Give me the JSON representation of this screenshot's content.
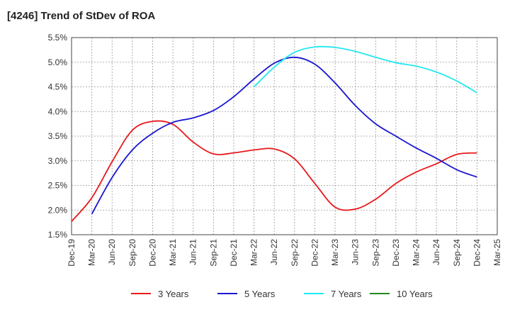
{
  "chart_data": {
    "type": "line",
    "title": "[4246]  Trend of StDev of ROA",
    "xlabel": "",
    "ylabel": "",
    "x_ticks": [
      "Dec-19",
      "Mar-20",
      "Jun-20",
      "Sep-20",
      "Dec-20",
      "Mar-21",
      "Jun-21",
      "Sep-21",
      "Dec-21",
      "Mar-22",
      "Jun-22",
      "Sep-22",
      "Dec-22",
      "Mar-23",
      "Jun-23",
      "Sep-23",
      "Dec-23",
      "Mar-24",
      "Jun-24",
      "Sep-24",
      "Dec-24",
      "Mar-25"
    ],
    "y_ticks": [
      "1.5%",
      "2.0%",
      "2.5%",
      "3.0%",
      "3.5%",
      "4.0%",
      "4.5%",
      "5.0%",
      "5.5%"
    ],
    "ylim": [
      1.5,
      5.5
    ],
    "grid": true,
    "legend_position": "bottom",
    "series": [
      {
        "name": "3 Years",
        "color": "#e8191d",
        "x": [
          "Dec-19",
          "Mar-20",
          "Jun-20",
          "Sep-20",
          "Dec-20",
          "Mar-21",
          "Jun-21",
          "Sep-21",
          "Dec-21",
          "Mar-22",
          "Jun-22",
          "Sep-22",
          "Dec-22",
          "Mar-23",
          "Jun-23",
          "Sep-23",
          "Dec-23",
          "Mar-24",
          "Jun-24",
          "Sep-24",
          "Dec-24"
        ],
        "values": [
          1.77,
          2.25,
          2.98,
          3.62,
          3.8,
          3.74,
          3.38,
          3.14,
          3.16,
          3.22,
          3.24,
          3.04,
          2.54,
          2.06,
          2.02,
          2.22,
          2.54,
          2.77,
          2.94,
          3.13,
          3.16
        ]
      },
      {
        "name": "5 Years",
        "color": "#1a16cf",
        "x": [
          "Mar-20",
          "Jun-20",
          "Sep-20",
          "Dec-20",
          "Mar-21",
          "Jun-21",
          "Sep-21",
          "Dec-21",
          "Mar-22",
          "Jun-22",
          "Sep-22",
          "Dec-22",
          "Mar-23",
          "Jun-23",
          "Sep-23",
          "Dec-23",
          "Mar-24",
          "Jun-24",
          "Sep-24",
          "Dec-24"
        ],
        "values": [
          1.92,
          2.66,
          3.22,
          3.56,
          3.78,
          3.87,
          4.02,
          4.3,
          4.66,
          4.98,
          5.1,
          4.96,
          4.58,
          4.12,
          3.75,
          3.5,
          3.26,
          3.05,
          2.82,
          2.67
        ]
      },
      {
        "name": "7 Years",
        "color": "#22e8f0",
        "x": [
          "Mar-22",
          "Jun-22",
          "Sep-22",
          "Dec-22",
          "Mar-23",
          "Jun-23",
          "Sep-23",
          "Dec-23",
          "Mar-24",
          "Jun-24",
          "Sep-24",
          "Dec-24"
        ],
        "values": [
          4.5,
          4.9,
          5.2,
          5.31,
          5.3,
          5.22,
          5.1,
          4.99,
          4.92,
          4.8,
          4.62,
          4.38
        ]
      },
      {
        "name": "10 Years",
        "color": "#1d8b1d",
        "x": [],
        "values": []
      }
    ]
  }
}
